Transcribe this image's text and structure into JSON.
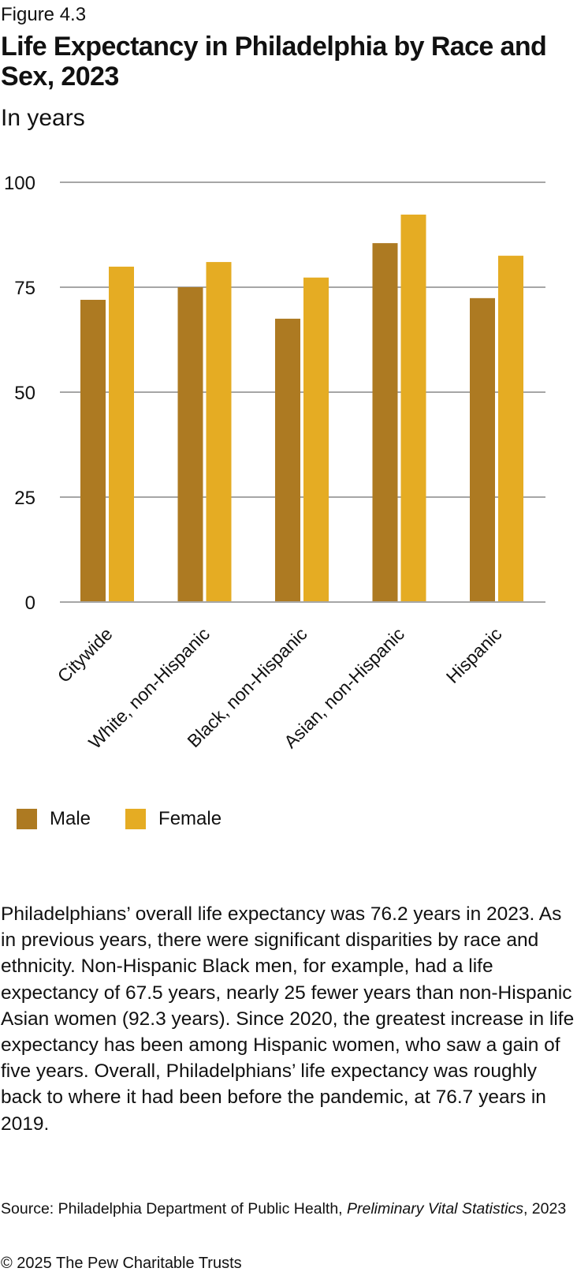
{
  "figure_label": "Figure 4.3",
  "colors": {
    "male": "#AD7A22",
    "female": "#E5AC23",
    "grid": "#A6A6A6",
    "text": "#111111"
  },
  "chart_data": {
    "type": "bar",
    "title": "Life Expectancy in Philadelphia by Race and Sex, 2023",
    "subtitle": "In years",
    "xlabel": "",
    "ylabel": "",
    "ylim": [
      0,
      100
    ],
    "yticks": [
      0,
      25,
      50,
      75,
      100
    ],
    "ytick_labels": [
      "0",
      "25",
      "50",
      "75",
      "100"
    ],
    "grid": true,
    "categories": [
      "Citywide",
      "White, non-Hispanic",
      "Black, non-Hispanic",
      "Asian, non-Hispanic",
      "Hispanic"
    ],
    "series": [
      {
        "name": "Male",
        "values": [
          72.0,
          75.0,
          67.5,
          85.5,
          72.4
        ]
      },
      {
        "name": "Female",
        "values": [
          79.9,
          81.0,
          77.3,
          92.3,
          82.5
        ]
      }
    ],
    "legend": {
      "position": "bottom-left",
      "entries": [
        "Male",
        "Female"
      ]
    }
  },
  "body_text": "Philadelphians’ overall life expectancy was 76.2 years in 2023. As in previous years, there were significant disparities by race and ethnicity. Non-Hispanic Black men, for example, had a life expectancy of 67.5 years, nearly 25 fewer years than non-Hispanic Asian women (92.3 years). Since 2020, the greatest increase in life expectancy has been among Hispanic women, who saw a gain of five years. Overall, Philadelphians’ life expectancy was roughly back to where it had been before the pandemic, at 76.7 years in 2019.",
  "source": {
    "prefix": "Source: Philadelphia Department of Public Health, ",
    "italic": "Preliminary Vital Statistics",
    "suffix": ", 2023"
  },
  "copyright": "© 2025 The Pew Charitable Trusts"
}
